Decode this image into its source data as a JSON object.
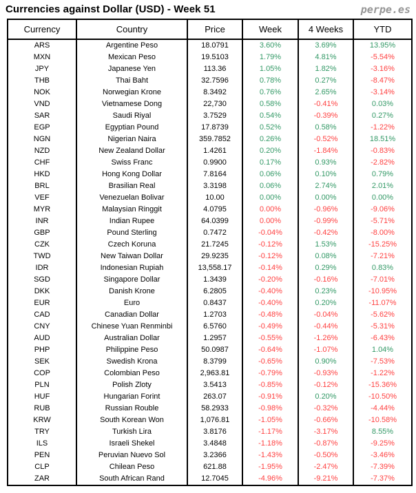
{
  "title": "Currencies against Dollar (USD) - Week 51",
  "brand": "perpe.es",
  "colors": {
    "positive": "#339966",
    "negative": "#ff4040",
    "text": "#000000",
    "border": "#000000",
    "brand_gray": "#969696",
    "background": "#ffffff"
  },
  "chart_data": {
    "type": "table",
    "title": "Currencies against Dollar (USD) - Week 51",
    "columns": [
      "Currency",
      "Country",
      "Price",
      "Week",
      "4 Weeks",
      "YTD"
    ],
    "trend_legend": "p = shown in green (positive), n = shown in red (negative); one letter each for Week, 4 Weeks, YTD",
    "rows": [
      [
        "ARS",
        "Argentine Peso",
        "18.0791",
        "3.60%",
        "3.69%",
        "13.95%"
      ],
      [
        "MXN",
        "Mexican Peso",
        "19.5103",
        "1.79%",
        "4.81%",
        "-5.54%"
      ],
      [
        "JPY",
        "Japanese Yen",
        "113.36",
        "1.05%",
        "1.82%",
        "-3.16%"
      ],
      [
        "THB",
        "Thai Baht",
        "32.7596",
        "0.78%",
        "0.27%",
        "-8.47%"
      ],
      [
        "NOK",
        "Norwegian Krone",
        "8.3492",
        "0.76%",
        "2.65%",
        "-3.14%"
      ],
      [
        "VND",
        "Vietnamese Dong",
        "22,730",
        "0.58%",
        "-0.41%",
        "0.03%"
      ],
      [
        "SAR",
        "Saudi Riyal",
        "3.7529",
        "0.54%",
        "-0.39%",
        "0.27%"
      ],
      [
        "EGP",
        "Egyptian Pound",
        "17.8739",
        "0.52%",
        "0.58%",
        "-1.22%"
      ],
      [
        "NGN",
        "Nigerian Naira",
        "359.7852",
        "0.26%",
        "-0.52%",
        "18.51%"
      ],
      [
        "NZD",
        "New Zealand Dollar",
        "1.4261",
        "0.20%",
        "-1.84%",
        "-0.83%"
      ],
      [
        "CHF",
        "Swiss Franc",
        "0.9900",
        "0.17%",
        "0.93%",
        "-2.82%"
      ],
      [
        "HKD",
        "Hong Kong Dollar",
        "7.8164",
        "0.06%",
        "0.10%",
        "0.79%"
      ],
      [
        "BRL",
        "Brasilian Real",
        "3.3198",
        "0.06%",
        "2.74%",
        "2.01%"
      ],
      [
        "VEF",
        "Venezuelan Bolivar",
        "10.00",
        "0.00%",
        "0.00%",
        "0.00%"
      ],
      [
        "MYR",
        "Malaysian Ringgit",
        "4.0795",
        "0.00%",
        "-0.96%",
        "-9.06%"
      ],
      [
        "INR",
        "Indian Rupee",
        "64.0399",
        "0.00%",
        "-0.99%",
        "-5.71%"
      ],
      [
        "GBP",
        "Pound Sterling",
        "0.7472",
        "-0.04%",
        "-0.42%",
        "-8.00%"
      ],
      [
        "CZK",
        "Czech Koruna",
        "21.7245",
        "-0.12%",
        "1.53%",
        "-15.25%"
      ],
      [
        "TWD",
        "New Taiwan Dollar",
        "29.9235",
        "-0.12%",
        "0.08%",
        "-7.21%"
      ],
      [
        "IDR",
        "Indonesian Rupiah",
        "13,558.17",
        "-0.14%",
        "0.29%",
        "0.83%"
      ],
      [
        "SGD",
        "Singapore Dollar",
        "1.3439",
        "-0.20%",
        "-0.16%",
        "-7.01%"
      ],
      [
        "DKK",
        "Danish Krone",
        "6.2805",
        "-0.40%",
        "0.23%",
        "-10.95%"
      ],
      [
        "EUR",
        "Euro",
        "0.8437",
        "-0.40%",
        "0.20%",
        "-11.07%"
      ],
      [
        "CAD",
        "Canadian Dollar",
        "1.2703",
        "-0.48%",
        "-0.04%",
        "-5.62%"
      ],
      [
        "CNY",
        "Chinese Yuan Renminbi",
        "6.5760",
        "-0.49%",
        "-0.44%",
        "-5.31%"
      ],
      [
        "AUD",
        "Australian Dollar",
        "1.2957",
        "-0.55%",
        "-1.26%",
        "-6.43%"
      ],
      [
        "PHP",
        "Philippine Peso",
        "50.0987",
        "-0.64%",
        "-1.07%",
        "1.04%"
      ],
      [
        "SEK",
        "Swedish Krona",
        "8.3799",
        "-0.65%",
        "0.90%",
        "-7.53%"
      ],
      [
        "COP",
        "Colombian Peso",
        "2,963.81",
        "-0.79%",
        "-0.93%",
        "-1.22%"
      ],
      [
        "PLN",
        "Polish Zloty",
        "3.5413",
        "-0.85%",
        "-0.12%",
        "-15.36%"
      ],
      [
        "HUF",
        "Hungarian Forint",
        "263.07",
        "-0.91%",
        "0.20%",
        "-10.50%"
      ],
      [
        "RUB",
        "Russian Rouble",
        "58.2933",
        "-0.98%",
        "-0.32%",
        "-4.44%"
      ],
      [
        "KRW",
        "South Korean Won",
        "1,076.81",
        "-1.05%",
        "-0.66%",
        "-10.58%"
      ],
      [
        "TRY",
        "Turkish Lira",
        "3.8176",
        "-1.17%",
        "-3.17%",
        "8.55%"
      ],
      [
        "ILS",
        "Israeli Shekel",
        "3.4848",
        "-1.18%",
        "-0.87%",
        "-9.25%"
      ],
      [
        "PEN",
        "Peruvian Nuevo Sol",
        "3.2366",
        "-1.43%",
        "-0.50%",
        "-3.46%"
      ],
      [
        "CLP",
        "Chilean Peso",
        "621.88",
        "-1.95%",
        "-2.47%",
        "-7.39%"
      ],
      [
        "ZAR",
        "South African Rand",
        "12.7045",
        "-4.96%",
        "-9.21%",
        "-7.37%"
      ]
    ],
    "trends": [
      "ppp",
      "ppn",
      "ppn",
      "ppn",
      "ppn",
      "pnp",
      "pnp",
      "ppn",
      "pnp",
      "pnn",
      "ppn",
      "ppp",
      "ppp",
      "ppp",
      "nnn",
      "nnn",
      "nnn",
      "npn",
      "npn",
      "npp",
      "nnn",
      "npn",
      "npn",
      "nnn",
      "nnn",
      "nnn",
      "nnp",
      "npn",
      "nnn",
      "nnn",
      "npn",
      "nnn",
      "nnn",
      "nnp",
      "nnn",
      "nnn",
      "nnn",
      "nnn"
    ]
  }
}
